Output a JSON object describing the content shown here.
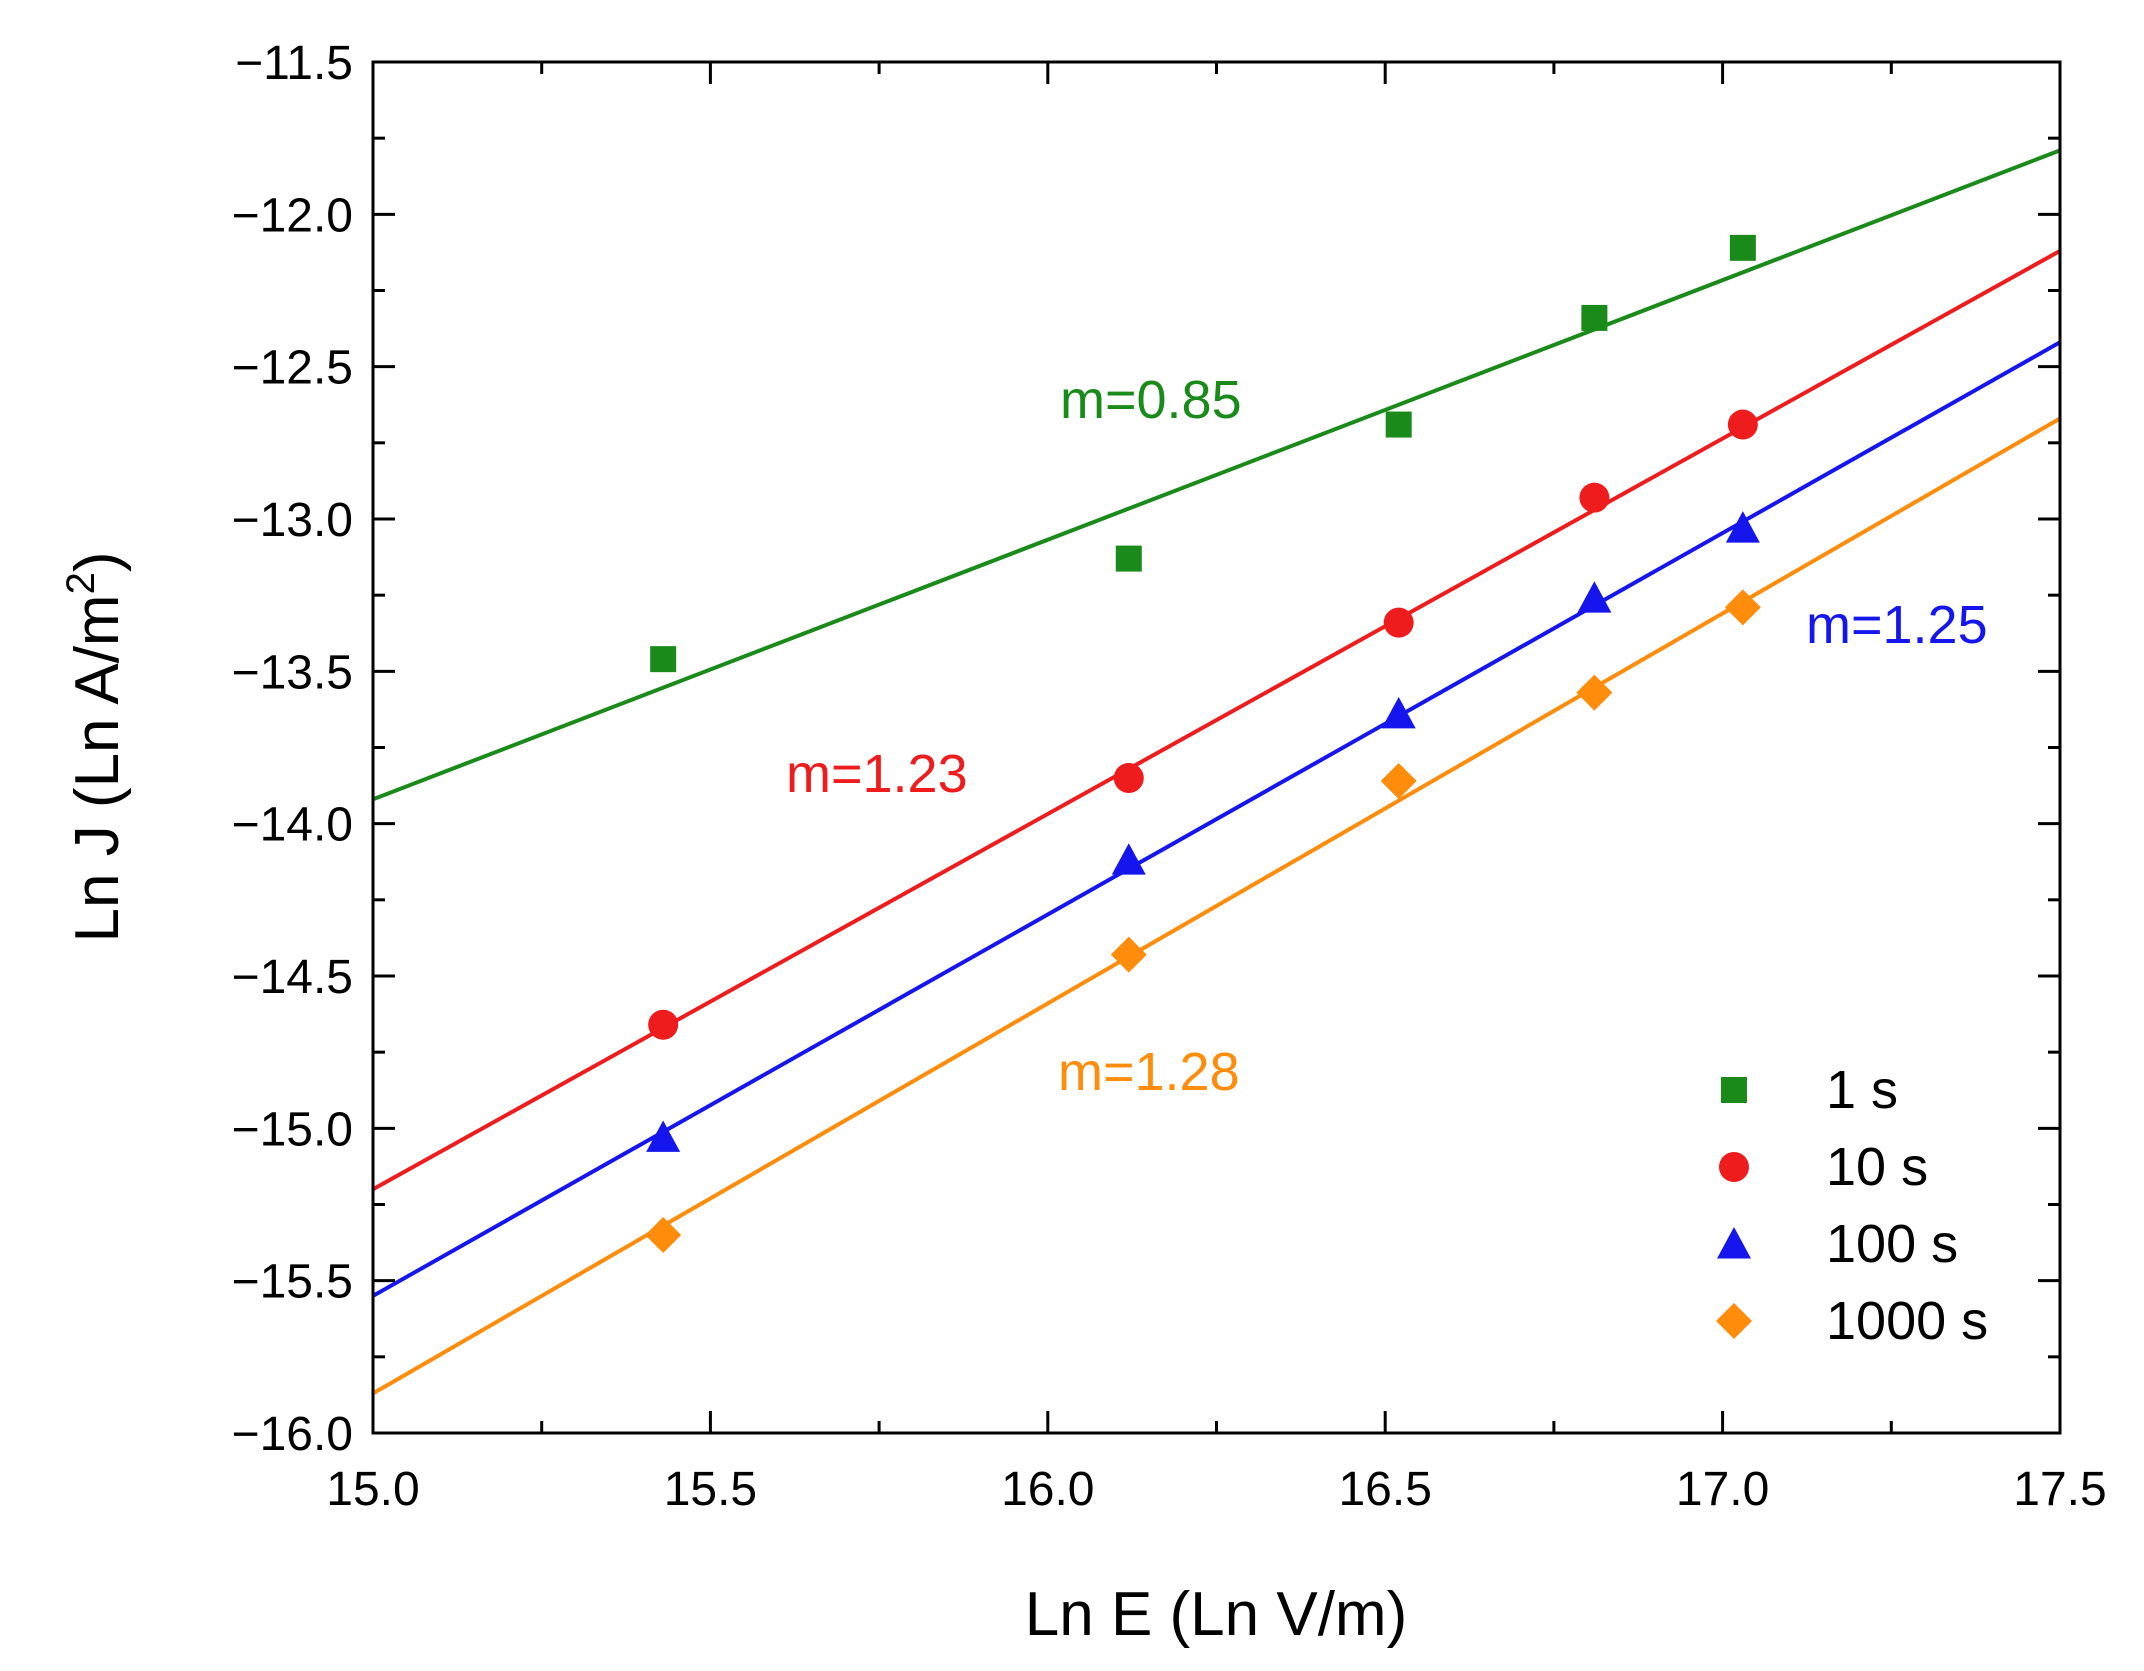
{
  "chart_data": {
    "type": "scatter",
    "xlabel": "Ln E (Ln V/m)",
    "ylabel_main": "Ln J (Ln A/m",
    "ylabel_sup": "2",
    "ylabel_end": ")",
    "xlim": [
      15.0,
      17.5
    ],
    "ylim": [
      -16.0,
      -11.5
    ],
    "xticks": [
      "15.0",
      "15.5",
      "16.0",
      "16.5",
      "17.0",
      "17.5"
    ],
    "yticks": [
      "−11.5",
      "−12.0",
      "−12.5",
      "−13.0",
      "−13.5",
      "−14.0",
      "−14.5",
      "−15.0",
      "−15.5",
      "−16.0"
    ],
    "grid": false,
    "legend_position": "bottom-right",
    "series": [
      {
        "name": "1 s",
        "marker": "square",
        "color": "#1a8a1a",
        "x": [
          15.43,
          16.12,
          16.52,
          16.81,
          17.03
        ],
        "y": [
          -13.46,
          -13.13,
          -12.69,
          -12.34,
          -12.11
        ],
        "fit": {
          "x": [
            15.0,
            17.5
          ],
          "y": [
            -13.92,
            -11.79
          ]
        },
        "annotation": "m=0.85"
      },
      {
        "name": "10 s",
        "marker": "circle",
        "color": "#ee1c1c",
        "x": [
          15.43,
          16.12,
          16.52,
          16.81,
          17.03
        ],
        "y": [
          -14.66,
          -13.85,
          -13.34,
          -12.93,
          -12.69
        ],
        "fit": {
          "x": [
            15.0,
            17.5
          ],
          "y": [
            -15.2,
            -12.12
          ]
        },
        "annotation": "m=1.23"
      },
      {
        "name": "100 s",
        "marker": "triangle",
        "color": "#1515ee",
        "x": [
          15.43,
          16.12,
          16.52,
          16.81,
          17.03
        ],
        "y": [
          -15.03,
          -14.12,
          -13.64,
          -13.26,
          -13.03
        ],
        "fit": {
          "x": [
            15.0,
            17.5
          ],
          "y": [
            -15.55,
            -12.42
          ]
        },
        "annotation": "m=1.25"
      },
      {
        "name": "1000 s",
        "marker": "diamond",
        "color": "#ff8c0a",
        "x": [
          15.43,
          16.12,
          16.52,
          16.81,
          17.03
        ],
        "y": [
          -15.35,
          -14.43,
          -13.86,
          -13.57,
          -13.29
        ],
        "fit": {
          "x": [
            15.0,
            17.5
          ],
          "y": [
            -15.87,
            -12.67
          ]
        },
        "annotation": "m=1.28"
      }
    ]
  }
}
